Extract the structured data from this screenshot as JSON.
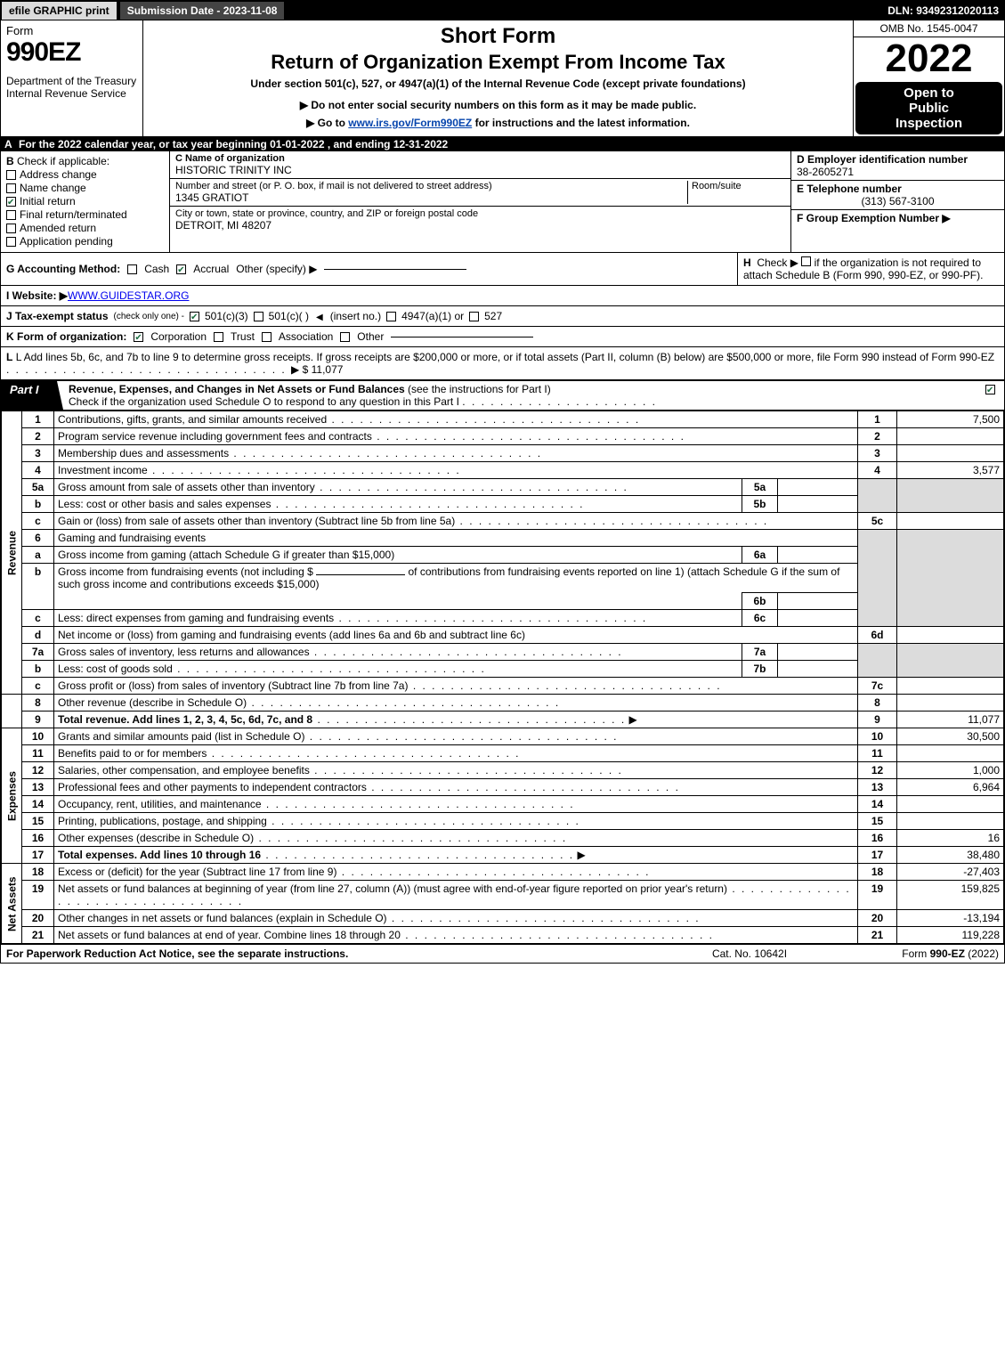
{
  "meta": {
    "omb": "OMB No. 1545-0047",
    "year": "2022",
    "dln": "DLN: 93492312020113",
    "submission_date_label": "Submission Date - 2023-11-08",
    "efile_label": "efile GRAPHIC print",
    "open_l1": "Open to",
    "open_l2": "Public",
    "open_l3": "Inspection"
  },
  "header": {
    "form_word": "Form",
    "form_num": "990EZ",
    "short": "Short Form",
    "return": "Return of Organization Exempt From Income Tax",
    "under": "Under section 501(c), 527, or 4947(a)(1) of the Internal Revenue Code (except private foundations)",
    "note1": "▶ Do not enter social security numbers on this form as it may be made public.",
    "note2_pre": "▶ Go to ",
    "note2_link": "www.irs.gov/Form990EZ",
    "note2_post": " for instructions and the latest information.",
    "dept": "Department of the Treasury\nInternal Revenue Service"
  },
  "sectionA": {
    "text": "For the 2022 calendar year, or tax year beginning 01-01-2022 , and ending 12-31-2022"
  },
  "sectionB": {
    "title": "Check if applicable:",
    "items": [
      {
        "label": "Address change",
        "checked": false
      },
      {
        "label": "Name change",
        "checked": false
      },
      {
        "label": "Initial return",
        "checked": true
      },
      {
        "label": "Final return/terminated",
        "checked": false
      },
      {
        "label": "Amended return",
        "checked": false
      },
      {
        "label": "Application pending",
        "checked": false
      }
    ]
  },
  "sectionC": {
    "name_label": "C Name of organization",
    "name": "HISTORIC TRINITY INC",
    "street_label": "Number and street (or P. O. box, if mail is not delivered to street address)",
    "room_label": "Room/suite",
    "street": "1345 GRATIOT",
    "city_label": "City or town, state or province, country, and ZIP or foreign postal code",
    "city": "DETROIT, MI  48207"
  },
  "sectionD": {
    "ein_label": "D Employer identification number",
    "ein": "38-2605271",
    "tel_label": "E Telephone number",
    "tel": "(313) 567-3100",
    "grp_label": "F Group Exemption Number   ▶"
  },
  "sectionG": {
    "label": "G Accounting Method:",
    "cash": "Cash",
    "accrual": "Accrual",
    "other": "Other (specify) ▶",
    "accrual_checked": true
  },
  "sectionH": {
    "text1": "Check ▶",
    "text2": "if the organization is not required to attach Schedule B (Form 990, 990-EZ, or 990-PF)."
  },
  "sectionI": {
    "label": "I Website: ▶",
    "url": "WWW.GUIDESTAR.ORG"
  },
  "sectionJ": {
    "label": "J Tax-exempt status",
    "sub": "(check only one) -",
    "c3": "501(c)(3)",
    "c": "501(c)(  )",
    "insert": "(insert no.)",
    "a4947": "4947(a)(1) or",
    "s527": "527",
    "c3_checked": true
  },
  "sectionK": {
    "label": "K Form of organization:",
    "corp": "Corporation",
    "trust": "Trust",
    "assoc": "Association",
    "other": "Other",
    "corp_checked": true
  },
  "sectionL": {
    "text": "L Add lines 5b, 6c, and 7b to line 9 to determine gross receipts. If gross receipts are $200,000 or more, or if total assets (Part II, column (B) below) are $500,000 or more, file Form 990 instead of Form 990-EZ",
    "amount": "▶ $ 11,077"
  },
  "partI": {
    "tag": "Part I",
    "title": "Revenue, Expenses, and Changes in Net Assets or Fund Balances",
    "sub1": "(see the instructions for Part I)",
    "sub2": "Check if the organization used Schedule O to respond to any question in this Part I",
    "checked": true
  },
  "revenue_label": "Revenue",
  "expenses_label": "Expenses",
  "netassets_label": "Net Assets",
  "lines": {
    "l1": {
      "n": "1",
      "desc": "Contributions, gifts, grants, and similar amounts received",
      "box": "1",
      "val": "7,500"
    },
    "l2": {
      "n": "2",
      "desc": "Program service revenue including government fees and contracts",
      "box": "2",
      "val": ""
    },
    "l3": {
      "n": "3",
      "desc": "Membership dues and assessments",
      "box": "3",
      "val": ""
    },
    "l4": {
      "n": "4",
      "desc": "Investment income",
      "box": "4",
      "val": "3,577"
    },
    "l5a": {
      "n": "5a",
      "desc": "Gross amount from sale of assets other than inventory",
      "sub": "5a",
      "subval": ""
    },
    "l5b": {
      "n": "b",
      "desc": "Less: cost or other basis and sales expenses",
      "sub": "5b",
      "subval": ""
    },
    "l5c": {
      "n": "c",
      "desc": "Gain or (loss) from sale of assets other than inventory (Subtract line 5b from line 5a)",
      "box": "5c",
      "val": ""
    },
    "l6": {
      "n": "6",
      "desc": "Gaming and fundraising events"
    },
    "l6a": {
      "n": "a",
      "desc": "Gross income from gaming (attach Schedule G if greater than $15,000)",
      "sub": "6a",
      "subval": ""
    },
    "l6b": {
      "n": "b",
      "desc_pre": "Gross income from fundraising events (not including $",
      "desc_mid": "of contributions from fundraising events reported on line 1) (attach Schedule G if the sum of such gross income and contributions exceeds $15,000)",
      "sub": "6b",
      "subval": ""
    },
    "l6c2": {
      "n": "c",
      "desc": "Less: direct expenses from gaming and fundraising events",
      "sub": "6c",
      "subval": ""
    },
    "l6d": {
      "n": "d",
      "desc": "Net income or (loss) from gaming and fundraising events (add lines 6a and 6b and subtract line 6c)",
      "box": "6d",
      "val": ""
    },
    "l7a": {
      "n": "7a",
      "desc": "Gross sales of inventory, less returns and allowances",
      "sub": "7a",
      "subval": ""
    },
    "l7b": {
      "n": "b",
      "desc": "Less: cost of goods sold",
      "sub": "7b",
      "subval": ""
    },
    "l7c": {
      "n": "c",
      "desc": "Gross profit or (loss) from sales of inventory (Subtract line 7b from line 7a)",
      "box": "7c",
      "val": ""
    },
    "l8": {
      "n": "8",
      "desc": "Other revenue (describe in Schedule O)",
      "box": "8",
      "val": ""
    },
    "l9": {
      "n": "9",
      "desc": "Total revenue. Add lines 1, 2, 3, 4, 5c, 6d, 7c, and 8",
      "box": "9",
      "val": "11,077",
      "bold": true,
      "arrow": true
    },
    "l10": {
      "n": "10",
      "desc": "Grants and similar amounts paid (list in Schedule O)",
      "box": "10",
      "val": "30,500"
    },
    "l11": {
      "n": "11",
      "desc": "Benefits paid to or for members",
      "box": "11",
      "val": ""
    },
    "l12": {
      "n": "12",
      "desc": "Salaries, other compensation, and employee benefits",
      "box": "12",
      "val": "1,000"
    },
    "l13": {
      "n": "13",
      "desc": "Professional fees and other payments to independent contractors",
      "box": "13",
      "val": "6,964"
    },
    "l14": {
      "n": "14",
      "desc": "Occupancy, rent, utilities, and maintenance",
      "box": "14",
      "val": ""
    },
    "l15": {
      "n": "15",
      "desc": "Printing, publications, postage, and shipping",
      "box": "15",
      "val": ""
    },
    "l16": {
      "n": "16",
      "desc": "Other expenses (describe in Schedule O)",
      "box": "16",
      "val": "16"
    },
    "l17": {
      "n": "17",
      "desc": "Total expenses. Add lines 10 through 16",
      "box": "17",
      "val": "38,480",
      "bold": true,
      "arrow": true
    },
    "l18": {
      "n": "18",
      "desc": "Excess or (deficit) for the year (Subtract line 17 from line 9)",
      "box": "18",
      "val": "-27,403"
    },
    "l19": {
      "n": "19",
      "desc": "Net assets or fund balances at beginning of year (from line 27, column (A)) (must agree with end-of-year figure reported on prior year's return)",
      "box": "19",
      "val": "159,825"
    },
    "l20": {
      "n": "20",
      "desc": "Other changes in net assets or fund balances (explain in Schedule O)",
      "box": "20",
      "val": "-13,194"
    },
    "l21": {
      "n": "21",
      "desc": "Net assets or fund balances at end of year. Combine lines 18 through 20",
      "box": "21",
      "val": "119,228"
    }
  },
  "footer": {
    "l": "For Paperwork Reduction Act Notice, see the separate instructions.",
    "m": "Cat. No. 10642I",
    "r_pre": "Form ",
    "r_b": "990-EZ",
    "r_post": " (2022)"
  },
  "colors": {
    "black": "#000000",
    "white": "#ffffff",
    "shade": "#dcdcdc",
    "link": "#0645ad",
    "check_green": "#1d6f42"
  }
}
